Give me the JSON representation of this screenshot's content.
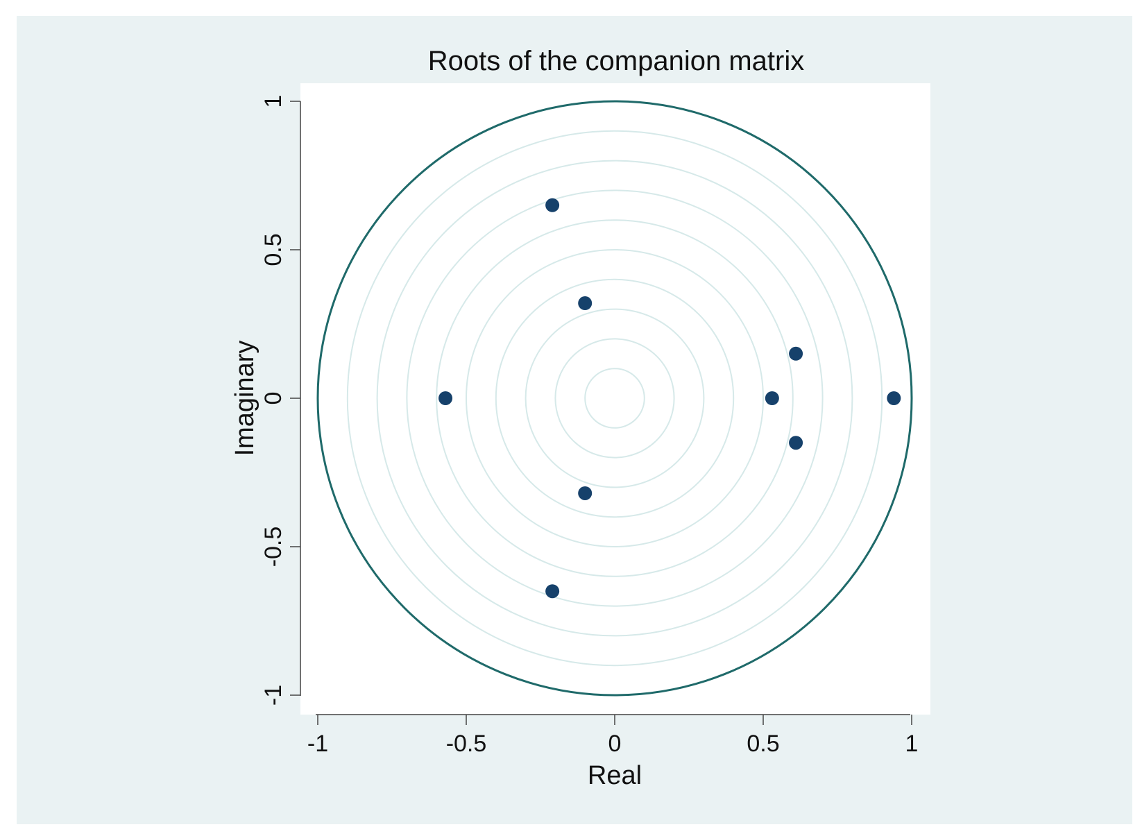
{
  "chart_data": {
    "type": "scatter",
    "title": "Roots of the companion matrix",
    "xlabel": "Real",
    "ylabel": "Imaginary",
    "xlim": [
      -1,
      1
    ],
    "ylim": [
      -1,
      1
    ],
    "x_ticks": [
      -1,
      -0.5,
      0,
      0.5,
      1
    ],
    "y_ticks": [
      -1,
      -0.5,
      0,
      0.5,
      1
    ],
    "x_tick_labels": [
      "-1",
      "-0.5",
      "0",
      "0.5",
      "1"
    ],
    "y_tick_labels": [
      "-1",
      "-0.5",
      "0",
      "0.5",
      "1"
    ],
    "unit_circle": true,
    "reference_circle_radii": [
      0.1,
      0.2,
      0.3,
      0.4,
      0.5,
      0.6,
      0.7,
      0.8,
      0.9
    ],
    "grid": false,
    "legend": "none",
    "colors": {
      "background": "#eaf2f3",
      "plot_area": "#ffffff",
      "unit_circle": "#1f6a6a",
      "reference_circles": "#d6e9e9",
      "points": "#16416b"
    },
    "points": [
      {
        "x": -0.21,
        "y": 0.65
      },
      {
        "x": -0.1,
        "y": 0.32
      },
      {
        "x": 0.61,
        "y": 0.15
      },
      {
        "x": -0.57,
        "y": 0.0
      },
      {
        "x": 0.53,
        "y": 0.0
      },
      {
        "x": 0.94,
        "y": 0.0
      },
      {
        "x": 0.61,
        "y": -0.15
      },
      {
        "x": -0.1,
        "y": -0.32
      },
      {
        "x": -0.21,
        "y": -0.65
      }
    ]
  }
}
